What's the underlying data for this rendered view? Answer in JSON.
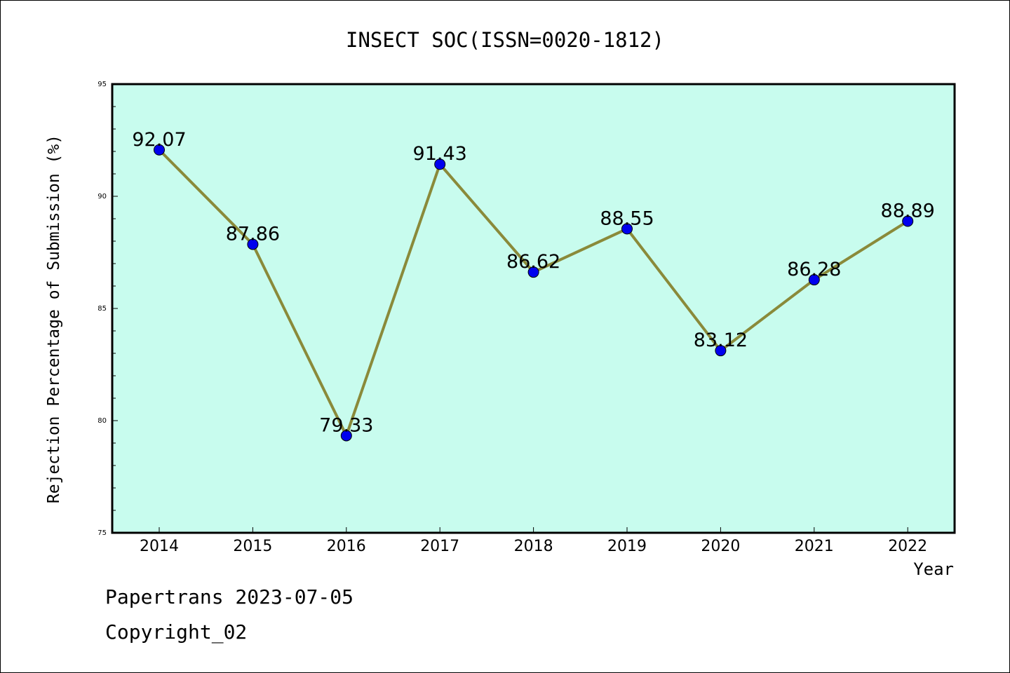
{
  "chart_data": {
    "type": "line",
    "title": "INSECT SOC(ISSN=0020-1812)",
    "xlabel": "Year",
    "ylabel": "Rejection Percentage of Submission (%)",
    "categories": [
      "2014",
      "2015",
      "2016",
      "2017",
      "2018",
      "2019",
      "2020",
      "2021",
      "2022"
    ],
    "values": [
      92.07,
      87.86,
      79.33,
      91.43,
      86.62,
      88.55,
      83.12,
      86.28,
      88.89
    ],
    "data_labels": [
      "92.07",
      "87.86",
      "79.33",
      "91.43",
      "86.62",
      "88.55",
      "83.12",
      "86.28",
      "88.89"
    ],
    "ylim": [
      75,
      95
    ],
    "yticks": [
      "75",
      "80",
      "85",
      "90",
      "95"
    ],
    "grid": false,
    "colors": {
      "plot_bg": "#c8fcee",
      "line": "#8a8a3a",
      "marker": "#0000ee"
    }
  },
  "footer": {
    "line1": "Papertrans 2023-07-05",
    "line2": "Copyright_02"
  }
}
